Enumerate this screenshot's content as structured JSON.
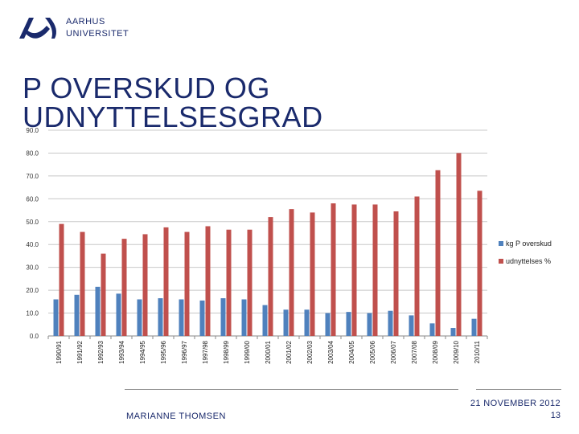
{
  "header": {
    "logo_line1": "AARHUS",
    "logo_line2": "UNIVERSITET",
    "title_line1": "P OVERSKUD OG",
    "title_line2": "UDNYTTELSESGRAD"
  },
  "footer": {
    "author": "MARIANNE THOMSEN",
    "date": "21 NOVEMBER 2012",
    "page": "13"
  },
  "colors": {
    "brand": "#1a2a6c",
    "series1": "#4f81bd",
    "series2": "#c0504d"
  },
  "chart_data": {
    "type": "bar",
    "title": "",
    "xlabel": "",
    "ylabel": "",
    "ylim": [
      0,
      90
    ],
    "yticks": [
      "0.0",
      "10.0",
      "20.0",
      "30.0",
      "40.0",
      "50.0",
      "60.0",
      "70.0",
      "80.0",
      "90.0"
    ],
    "categories": [
      "1990/91",
      "1991/92",
      "1992/93",
      "1993/94",
      "1994/95",
      "1995/96",
      "1996/97",
      "1997/98",
      "1998/99",
      "1999/00",
      "2000/01",
      "2001/02",
      "2002/03",
      "2003/04",
      "2004/05",
      "2005/06",
      "2006/07",
      "2007/08",
      "2008/09",
      "2009/10",
      "2010/11"
    ],
    "legend_position": "right",
    "series": [
      {
        "name": "kg P overskud",
        "values": [
          16,
          18,
          21.5,
          18.5,
          16,
          16.5,
          16,
          15.5,
          16.5,
          16,
          13.5,
          11.5,
          11.5,
          10,
          10.5,
          10,
          11,
          9,
          5.5,
          3.5,
          7.5
        ]
      },
      {
        "name": "udnyttelses %",
        "values": [
          49,
          45.5,
          36,
          42.5,
          44.5,
          47.5,
          45.5,
          48,
          46.5,
          46.5,
          52,
          55.5,
          54,
          58,
          57.5,
          57.5,
          54.5,
          61,
          72.5,
          80,
          63.5
        ]
      }
    ]
  }
}
